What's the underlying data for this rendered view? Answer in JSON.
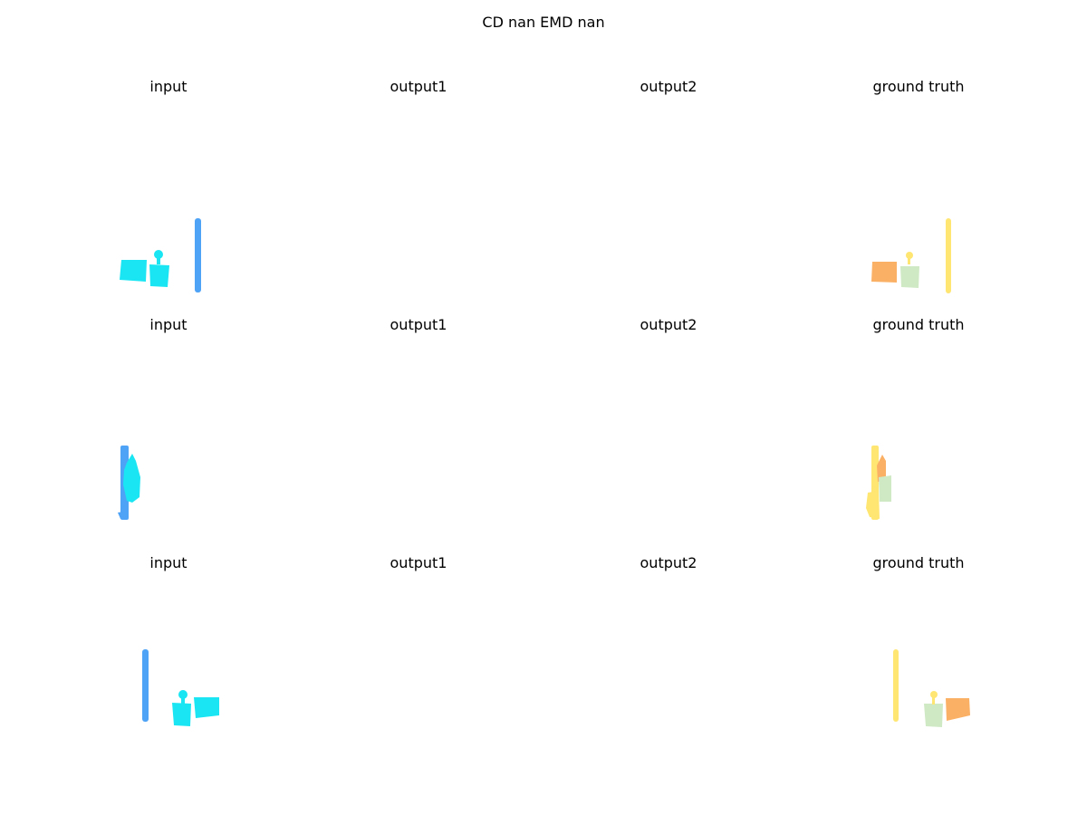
{
  "suptitle": "CD nan  EMD nan",
  "colors": {
    "pole_input": "#4fa3f7",
    "object_input": "#19e6f2",
    "pole_gt": "#ffe672",
    "object_gt_a": "#fbb165",
    "object_gt_b": "#cfe9c4"
  },
  "rows": [
    {
      "panels": [
        {
          "title": "input"
        },
        {
          "title": "output1"
        },
        {
          "title": "output2"
        },
        {
          "title": "ground truth"
        }
      ]
    },
    {
      "panels": [
        {
          "title": "input"
        },
        {
          "title": "output1"
        },
        {
          "title": "output2"
        },
        {
          "title": "ground truth"
        }
      ]
    },
    {
      "panels": [
        {
          "title": "input"
        },
        {
          "title": "output1"
        },
        {
          "title": "output2"
        },
        {
          "title": "ground truth"
        }
      ]
    }
  ]
}
